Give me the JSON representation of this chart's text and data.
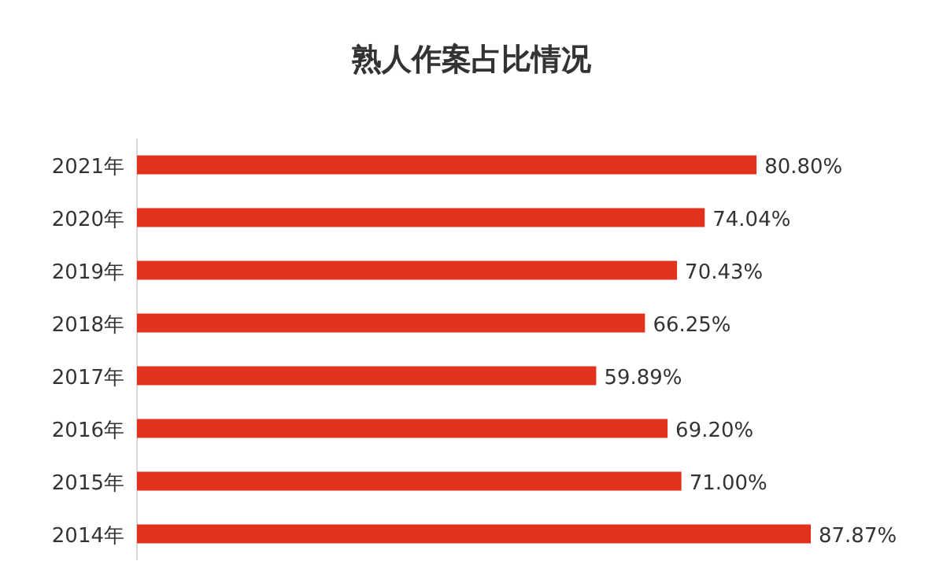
{
  "chart_data": {
    "type": "bar",
    "orientation": "horizontal",
    "title": "熟人作案占比情况",
    "categories": [
      "2021年",
      "2020年",
      "2019年",
      "2018年",
      "2017年",
      "2016年",
      "2015年",
      "2014年"
    ],
    "values": [
      80.8,
      74.04,
      70.43,
      66.25,
      59.89,
      69.2,
      71.0,
      87.87
    ],
    "value_labels": [
      "80.80%",
      "74.04%",
      "70.43%",
      "66.25%",
      "59.89%",
      "69.20%",
      "71.00%",
      "87.87%"
    ],
    "color": "#e2321e"
  }
}
